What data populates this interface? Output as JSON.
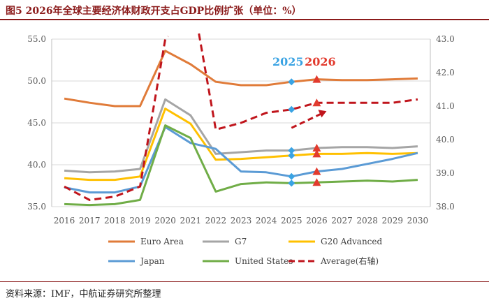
{
  "title": "图5  2026年全球主要经济体财政开支占GDP比例扩张（单位：%）",
  "source": "资料来源：IMF，中航证券研究所整理",
  "chart_data": {
    "type": "line",
    "categories": [
      "2016",
      "2017",
      "2018",
      "2019",
      "2020",
      "2021",
      "2022",
      "2023",
      "2024",
      "2025",
      "2026",
      "2027",
      "2028",
      "2029",
      "2030"
    ],
    "y_left": {
      "min": 35,
      "max": 55,
      "ticks": [
        "35.0",
        "40.0",
        "45.0",
        "50.0",
        "55.0"
      ]
    },
    "y_right": {
      "min": 38,
      "max": 43,
      "ticks": [
        "38.0",
        "39.0",
        "40.0",
        "41.0",
        "42.0",
        "43.0"
      ]
    },
    "series": [
      {
        "name": "Euro Area",
        "color": "#e07b39",
        "axis": "left",
        "style": "solid",
        "values": [
          47.9,
          47.4,
          47.0,
          47.0,
          53.6,
          52.0,
          49.9,
          49.5,
          49.5,
          49.9,
          50.2,
          50.1,
          50.1,
          50.2,
          50.3
        ]
      },
      {
        "name": "G7",
        "color": "#a5a5a5",
        "axis": "left",
        "style": "solid",
        "values": [
          39.3,
          39.1,
          39.2,
          39.5,
          47.8,
          45.9,
          41.3,
          41.5,
          41.7,
          41.7,
          42.0,
          42.1,
          42.1,
          42.0,
          42.2
        ]
      },
      {
        "name": "G20 Advanced",
        "color": "#ffc000",
        "axis": "left",
        "style": "solid",
        "values": [
          38.4,
          38.2,
          38.2,
          38.6,
          46.7,
          44.9,
          40.6,
          40.7,
          40.9,
          41.1,
          41.3,
          41.3,
          41.4,
          41.3,
          41.4
        ]
      },
      {
        "name": "Japan",
        "color": "#5b9bd5",
        "axis": "left",
        "style": "solid",
        "values": [
          37.3,
          36.7,
          36.7,
          37.4,
          44.5,
          42.6,
          41.9,
          39.2,
          39.1,
          38.6,
          39.2,
          39.5,
          40.1,
          40.7,
          41.4
        ]
      },
      {
        "name": "United States",
        "color": "#70ad47",
        "axis": "left",
        "style": "solid",
        "values": [
          35.3,
          35.2,
          35.3,
          35.8,
          44.7,
          43.2,
          36.8,
          37.7,
          37.9,
          37.8,
          37.9,
          38.0,
          38.1,
          38.0,
          38.2
        ]
      },
      {
        "name": "Average(右轴)",
        "color": "#c0151c",
        "axis": "right",
        "style": "dashed",
        "values": [
          38.6,
          38.2,
          38.3,
          38.6,
          43.0,
          null,
          40.3,
          40.5,
          40.8,
          40.9,
          41.1,
          41.1,
          41.1,
          41.1,
          41.2
        ],
        "extra_segment_from": 41.2
      }
    ],
    "annotations": [
      {
        "text": "2025",
        "color": "#3aa3e3",
        "at": "2025"
      },
      {
        "text": "2026",
        "color": "#e23b2e",
        "at": "2026"
      }
    ],
    "legend": [
      "Euro Area",
      "G7",
      "G20 Advanced",
      "Japan",
      "United States",
      "Average(右轴)"
    ]
  }
}
